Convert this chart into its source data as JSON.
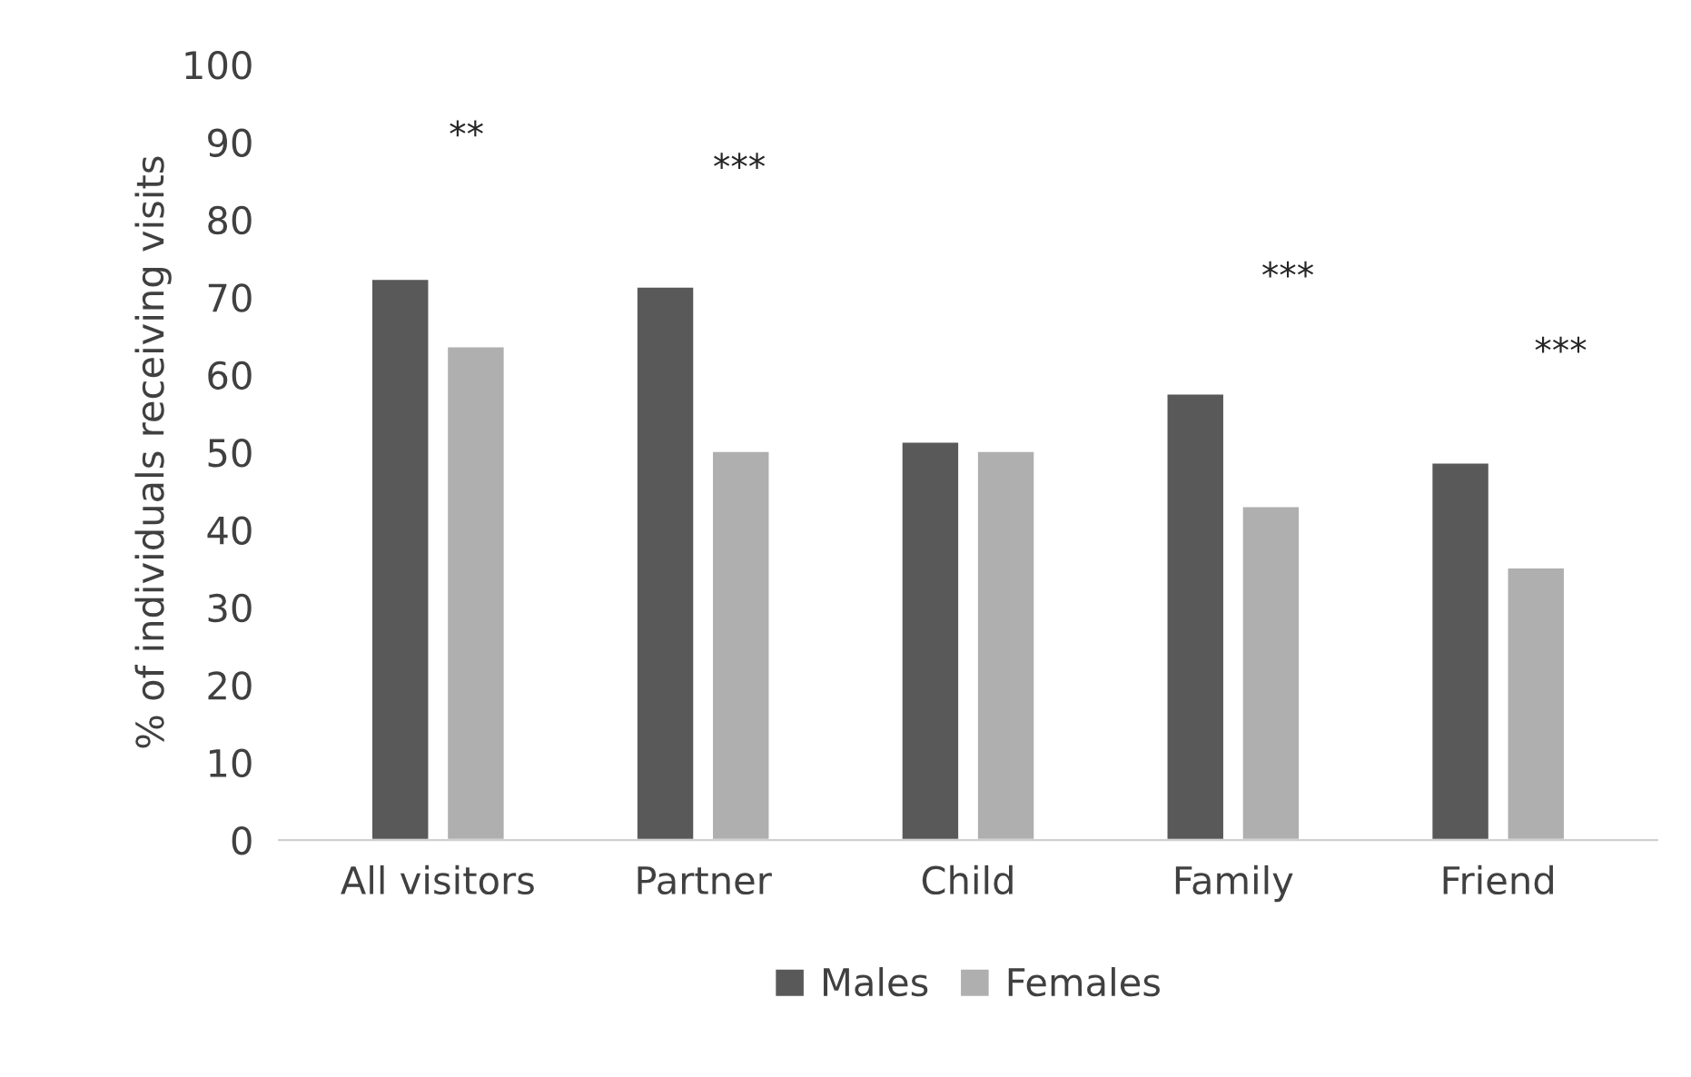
{
  "chart_data": {
    "type": "bar",
    "ylabel": "% of individuals receiving visits",
    "categories": [
      "All visitors",
      "Partner",
      "Child",
      "Family",
      "Friend"
    ],
    "series": [
      {
        "name": "Males",
        "color": "#595959",
        "values": [
          72.4,
          71.4,
          51.4,
          57.6,
          48.7
        ]
      },
      {
        "name": "Females",
        "color": "#afafaf",
        "values": [
          63.7,
          50.2,
          50.2,
          43.1,
          35.2
        ]
      }
    ],
    "ylim": [
      0,
      100
    ],
    "yticks": [
      0,
      10,
      20,
      30,
      40,
      50,
      60,
      70,
      80,
      90,
      100
    ],
    "annotations": [
      "**",
      "***",
      "***",
      "***"
    ],
    "grid": false,
    "legend": "bottom"
  }
}
